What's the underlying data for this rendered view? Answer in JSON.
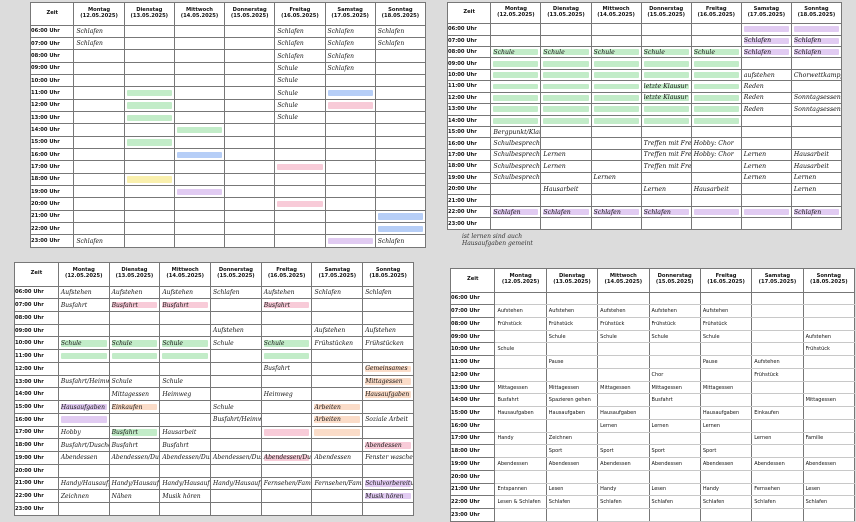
{
  "header": {
    "zeit": "Zeit",
    "days": [
      {
        "name": "Montag",
        "date": "(12.05.2025)"
      },
      {
        "name": "Dienstag",
        "date": "(13.05.2025)"
      },
      {
        "name": "Mittwoch",
        "date": "(14.05.2025)"
      },
      {
        "name": "Donnerstag",
        "date": "(15.05.2025)"
      },
      {
        "name": "Freitag",
        "date": "(16.05.2025)"
      },
      {
        "name": "Samstag",
        "date": "(17.05.2025)"
      },
      {
        "name": "Sonntag",
        "date": "(18.05.2025)"
      }
    ]
  },
  "times": [
    "06:00 Uhr",
    "07:00 Uhr",
    "08:00 Uhr",
    "09:00 Uhr",
    "10:00 Uhr",
    "11:00 Uhr",
    "12:00 Uhr",
    "13:00 Uhr",
    "14:00 Uhr",
    "15:00 Uhr",
    "16:00 Uhr",
    "17:00 Uhr",
    "18:00 Uhr",
    "19:00 Uhr",
    "20:00 Uhr",
    "21:00 Uhr",
    "22:00 Uhr",
    "23:00 Uhr"
  ],
  "colors": {
    "green": "#8fdc9a",
    "purple": "#c9a0e8",
    "pink": "#f2a0b8",
    "blue": "#7aa6f0",
    "yellow": "#f5e36a",
    "orange": "#f7c09a",
    "grey": "#9a9a9a"
  },
  "sheets": [
    {
      "id": "top-left",
      "cells": {
        "0": {
          "0": "Schlafen",
          "4": "Schlafen",
          "5": "Schlafen",
          "6": "Schlafen"
        },
        "1": {
          "0": "Schlafen",
          "4": "Schlafen",
          "5": "Schlafen",
          "6": "Schlafen"
        },
        "2": {
          "4": "Schlafen",
          "5": "Schlafen"
        },
        "3": {
          "4": "Schule",
          "5": "Schlafen"
        },
        "4": {
          "4": "Schule"
        },
        "5": {
          "4": "Schule"
        },
        "6": {
          "4": "Schule"
        },
        "7": {
          "4": "Schule"
        },
        "17": {
          "0": "Schlafen",
          "6": "Schlafen"
        }
      },
      "highlights": [
        {
          "r": 5,
          "c": 1,
          "color": "green"
        },
        {
          "r": 6,
          "c": 1,
          "color": "green"
        },
        {
          "r": 7,
          "c": 1,
          "color": "green"
        },
        {
          "r": 8,
          "c": 2,
          "color": "green"
        },
        {
          "r": 9,
          "c": 1,
          "color": "green"
        },
        {
          "r": 10,
          "c": 2,
          "color": "blue"
        },
        {
          "r": 11,
          "c": 4,
          "color": "pink"
        },
        {
          "r": 5,
          "c": 5,
          "color": "blue"
        },
        {
          "r": 6,
          "c": 5,
          "color": "pink"
        },
        {
          "r": 12,
          "c": 1,
          "color": "yellow"
        },
        {
          "r": 13,
          "c": 2,
          "color": "purple"
        },
        {
          "r": 15,
          "c": 6,
          "color": "blue"
        },
        {
          "r": 16,
          "c": 6,
          "color": "blue"
        },
        {
          "r": 17,
          "c": 5,
          "color": "purple"
        },
        {
          "r": 14,
          "c": 4,
          "color": "pink"
        }
      ]
    },
    {
      "id": "top-right",
      "cells": {
        "2": {
          "0": "Schule",
          "1": "Schule",
          "2": "Schule",
          "3": "Schule",
          "4": "Schule",
          "5": "Schlafen",
          "6": "Schlafen"
        },
        "1": {
          "5": "Schlafen",
          "6": "Schlafen"
        },
        "4": {
          "5": "aufstehen",
          "6": "Chorwettkampf Vorbereitung"
        },
        "5": {
          "3": "letzte Klausur",
          "5": "Reden"
        },
        "6": {
          "3": "letzte Klausur",
          "5": "Reden",
          "6": "Sonntagsessen"
        },
        "7": {
          "5": "Reden",
          "6": "Sonntagsessen"
        },
        "9": {
          "0": "Bergpunkt/Klausur"
        },
        "10": {
          "0": "Schulbesprechung",
          "3": "Treffen mit Freunden",
          "4": "Hobby: Chor"
        },
        "11": {
          "0": "Schulbesprechung",
          "1": "Lernen",
          "3": "Treffen mit Freunden",
          "4": "Hobby: Chor",
          "5": "Lernen",
          "6": "Hausarbeit"
        },
        "12": {
          "0": "Schulbesprechung",
          "1": "Lernen",
          "3": "Treffen mit Freunden",
          "5": "Lernen",
          "6": "Hausarbeit"
        },
        "13": {
          "0": "Schulbesprechung",
          "2": "Lernen",
          "5": "Lernen",
          "6": "Lernen"
        },
        "14": {
          "1": "Hausarbeit",
          "3": "Lernen",
          "4": "Hausarbeit",
          "6": "Lernen"
        },
        "16": {
          "0": "Schlafen",
          "1": "Schlafen",
          "2": "Schlafen",
          "3": "Schlafen",
          "6": "Schlafen"
        }
      },
      "highlights": [
        {
          "r": 0,
          "c": 5,
          "color": "purple"
        },
        {
          "r": 0,
          "c": 6,
          "color": "purple"
        },
        {
          "r": 1,
          "c": 5,
          "color": "purple"
        },
        {
          "r": 1,
          "c": 6,
          "color": "purple"
        },
        {
          "r": 2,
          "c": 0,
          "color": "green"
        },
        {
          "r": 2,
          "c": 1,
          "color": "green"
        },
        {
          "r": 2,
          "c": 2,
          "color": "green"
        },
        {
          "r": 2,
          "c": 3,
          "color": "green"
        },
        {
          "r": 2,
          "c": 4,
          "color": "green"
        },
        {
          "r": 2,
          "c": 5,
          "color": "purple"
        },
        {
          "r": 2,
          "c": 6,
          "color": "purple"
        },
        {
          "r": 3,
          "c": 0,
          "color": "green"
        },
        {
          "r": 3,
          "c": 1,
          "color": "green"
        },
        {
          "r": 3,
          "c": 2,
          "color": "green"
        },
        {
          "r": 3,
          "c": 3,
          "color": "green"
        },
        {
          "r": 3,
          "c": 4,
          "color": "green"
        },
        {
          "r": 4,
          "c": 0,
          "color": "green"
        },
        {
          "r": 4,
          "c": 1,
          "color": "green"
        },
        {
          "r": 4,
          "c": 2,
          "color": "green"
        },
        {
          "r": 4,
          "c": 3,
          "color": "green"
        },
        {
          "r": 4,
          "c": 4,
          "color": "green"
        },
        {
          "r": 5,
          "c": 0,
          "color": "green"
        },
        {
          "r": 5,
          "c": 1,
          "color": "green"
        },
        {
          "r": 5,
          "c": 2,
          "color": "green"
        },
        {
          "r": 5,
          "c": 3,
          "color": "green"
        },
        {
          "r": 5,
          "c": 4,
          "color": "green"
        },
        {
          "r": 6,
          "c": 0,
          "color": "green"
        },
        {
          "r": 6,
          "c": 1,
          "color": "green"
        },
        {
          "r": 6,
          "c": 2,
          "color": "green"
        },
        {
          "r": 6,
          "c": 3,
          "color": "green"
        },
        {
          "r": 6,
          "c": 4,
          "color": "green"
        },
        {
          "r": 7,
          "c": 0,
          "color": "green"
        },
        {
          "r": 7,
          "c": 1,
          "color": "green"
        },
        {
          "r": 7,
          "c": 2,
          "color": "green"
        },
        {
          "r": 7,
          "c": 3,
          "color": "green"
        },
        {
          "r": 7,
          "c": 4,
          "color": "green"
        },
        {
          "r": 8,
          "c": 0,
          "color": "green"
        },
        {
          "r": 8,
          "c": 1,
          "color": "green"
        },
        {
          "r": 8,
          "c": 2,
          "color": "green"
        },
        {
          "r": 8,
          "c": 3,
          "color": "green"
        },
        {
          "r": 8,
          "c": 4,
          "color": "green"
        },
        {
          "r": 16,
          "c": 0,
          "color": "purple"
        },
        {
          "r": 16,
          "c": 1,
          "color": "purple"
        },
        {
          "r": 16,
          "c": 2,
          "color": "purple"
        },
        {
          "r": 16,
          "c": 3,
          "color": "purple"
        },
        {
          "r": 16,
          "c": 4,
          "color": "purple"
        },
        {
          "r": 16,
          "c": 5,
          "color": "purple"
        },
        {
          "r": 16,
          "c": 6,
          "color": "purple"
        }
      ]
    },
    {
      "id": "bottom-left",
      "cells": {
        "0": {
          "0": "Aufstehen",
          "1": "Aufstehen",
          "2": "Aufstehen",
          "3": "Schlafen",
          "4": "Aufstehen",
          "5": "Schlafen",
          "6": "Schlafen"
        },
        "1": {
          "0": "Busfahrt",
          "1": "Busfahrt",
          "2": "Busfahrt",
          "4": "Busfahrt"
        },
        "3": {
          "3": "Aufstehen",
          "5": "Aufstehen",
          "6": "Aufstehen"
        },
        "4": {
          "0": "Schule",
          "1": "Schule",
          "2": "Schule",
          "3": "Schule",
          "4": "Schule",
          "5": "Frühstücken",
          "6": "Frühstücken"
        },
        "6": {
          "4": "Busfahrt",
          "6": "Gemeinsames"
        },
        "7": {
          "0": "Busfahrt/Heimweg",
          "1": "Schule",
          "2": "Schule",
          "6": "Mittagessen"
        },
        "8": {
          "1": "Mittagessen",
          "2": "Heimweg",
          "4": "Heimweg",
          "6": "Hausaufgaben"
        },
        "9": {
          "0": "Hausaufgaben",
          "1": "Einkaufen",
          "3": "Schule",
          "5": "Arbeiten"
        },
        "10": {
          "3": "Busfahrt/Heimweg",
          "5": "Arbeiten",
          "6": "Soziale Arbeit"
        },
        "11": {
          "0": "Hobby",
          "1": "Busfahrt",
          "2": "Hausarbeit"
        },
        "12": {
          "0": "Busfahrt/Duschen",
          "1": "Busfahrt",
          "2": "Busfahrt",
          "6": "Abendessen"
        },
        "13": {
          "0": "Abendessen",
          "1": "Abendessen/Duschen",
          "2": "Abendessen/Duschen",
          "3": "Abendessen/Duschen",
          "4": "Abendessen/Duschen",
          "5": "Abendessen",
          "6": "Fenster waschen"
        },
        "15": {
          "0": "Handy/Hausaufgaben",
          "1": "Handy/Hausaufgaben",
          "2": "Handy/Hausaufgaben",
          "3": "Handy/Hausaufgaben",
          "4": "Fernsehen/Familienzeit",
          "5": "Fernsehen/Familienzeit",
          "6": "Schulvorbereitung"
        },
        "16": {
          "0": "Zeichnen",
          "1": "Nähen",
          "2": "Musik hören",
          "6": "Musik hören"
        }
      },
      "highlights": [
        {
          "r": 1,
          "c": 1,
          "color": "pink"
        },
        {
          "r": 1,
          "c": 2,
          "color": "pink"
        },
        {
          "r": 1,
          "c": 4,
          "color": "pink"
        },
        {
          "r": 4,
          "c": 0,
          "color": "green"
        },
        {
          "r": 4,
          "c": 1,
          "color": "green"
        },
        {
          "r": 4,
          "c": 2,
          "color": "green"
        },
        {
          "r": 4,
          "c": 4,
          "color": "green"
        },
        {
          "r": 5,
          "c": 0,
          "color": "green"
        },
        {
          "r": 5,
          "c": 1,
          "color": "green"
        },
        {
          "r": 5,
          "c": 2,
          "color": "green"
        },
        {
          "r": 5,
          "c": 4,
          "color": "green"
        },
        {
          "r": 6,
          "c": 6,
          "color": "orange"
        },
        {
          "r": 7,
          "c": 6,
          "color": "orange"
        },
        {
          "r": 8,
          "c": 6,
          "color": "orange"
        },
        {
          "r": 9,
          "c": 0,
          "color": "purple"
        },
        {
          "r": 10,
          "c": 0,
          "color": "purple"
        },
        {
          "r": 9,
          "c": 1,
          "color": "orange"
        },
        {
          "r": 9,
          "c": 5,
          "color": "orange"
        },
        {
          "r": 10,
          "c": 5,
          "color": "orange"
        },
        {
          "r": 11,
          "c": 5,
          "color": "orange"
        },
        {
          "r": 11,
          "c": 1,
          "color": "green"
        },
        {
          "r": 11,
          "c": 4,
          "color": "pink"
        },
        {
          "r": 13,
          "c": 4,
          "color": "pink"
        },
        {
          "r": 15,
          "c": 6,
          "color": "purple"
        },
        {
          "r": 16,
          "c": 6,
          "color": "purple"
        },
        {
          "r": 12,
          "c": 6,
          "color": "pink"
        }
      ]
    },
    {
      "id": "bottom-right",
      "cells": {
        "1": {
          "0": "Aufstehen",
          "1": "Aufstehen",
          "2": "Aufstehen",
          "3": "Aufstehen",
          "4": "Aufstehen"
        },
        "2": {
          "0": "Frühstück",
          "1": "Frühstück",
          "2": "Frühstück",
          "3": "Frühstück",
          "4": "Frühstück"
        },
        "3": {
          "1": "Schule",
          "2": "Schule",
          "3": "Schule",
          "4": "Schule",
          "6": "Aufstehen"
        },
        "4": {
          "0": "Schule",
          "6": "Frühstück"
        },
        "5": {
          "1": "Pause",
          "4": "Pause",
          "5": "Aufstehen"
        },
        "6": {
          "3": "Chor",
          "5": "Frühstück"
        },
        "7": {
          "0": "Mittagessen",
          "1": "Mittagessen",
          "2": "Mittagessen",
          "3": "Mittagessen",
          "4": "Mittagessen"
        },
        "8": {
          "0": "Busfahrt",
          "1": "Spazieren gehen",
          "3": "Busfahrt",
          "6": "Mittagessen"
        },
        "9": {
          "0": "Hausaufgaben",
          "1": "Hausaufgaben",
          "2": "Hausaufgaben",
          "4": "Hausaufgaben",
          "5": "Einkaufen"
        },
        "10": {
          "2": "Lernen",
          "3": "Lernen",
          "4": "Lernen"
        },
        "11": {
          "0": "Handy",
          "1": "Zeichnen",
          "5": "Lernen",
          "6": "Familie"
        },
        "12": {
          "1": "Sport",
          "2": "Sport",
          "3": "Sport",
          "4": "Sport"
        },
        "13": {
          "0": "Abendessen",
          "1": "Abendessen",
          "2": "Abendessen",
          "3": "Abendessen",
          "4": "Abendessen",
          "5": "Abendessen",
          "6": "Abendessen"
        },
        "15": {
          "0": "Entspannen",
          "1": "Lesen",
          "2": "Handy",
          "3": "Lesen",
          "4": "Handy",
          "5": "Fernsehen",
          "6": "Lesen"
        },
        "16": {
          "0": "Lesen & Schlafen",
          "1": "Schlafen",
          "2": "Schlafen",
          "3": "Schlafen",
          "4": "Schlafen",
          "5": "Schlafen",
          "6": "Schlafen"
        }
      },
      "highlights": []
    }
  ],
  "note": {
    "line1": "ist lernen sind auch",
    "line2": "Hausaufgaben gemeint"
  }
}
